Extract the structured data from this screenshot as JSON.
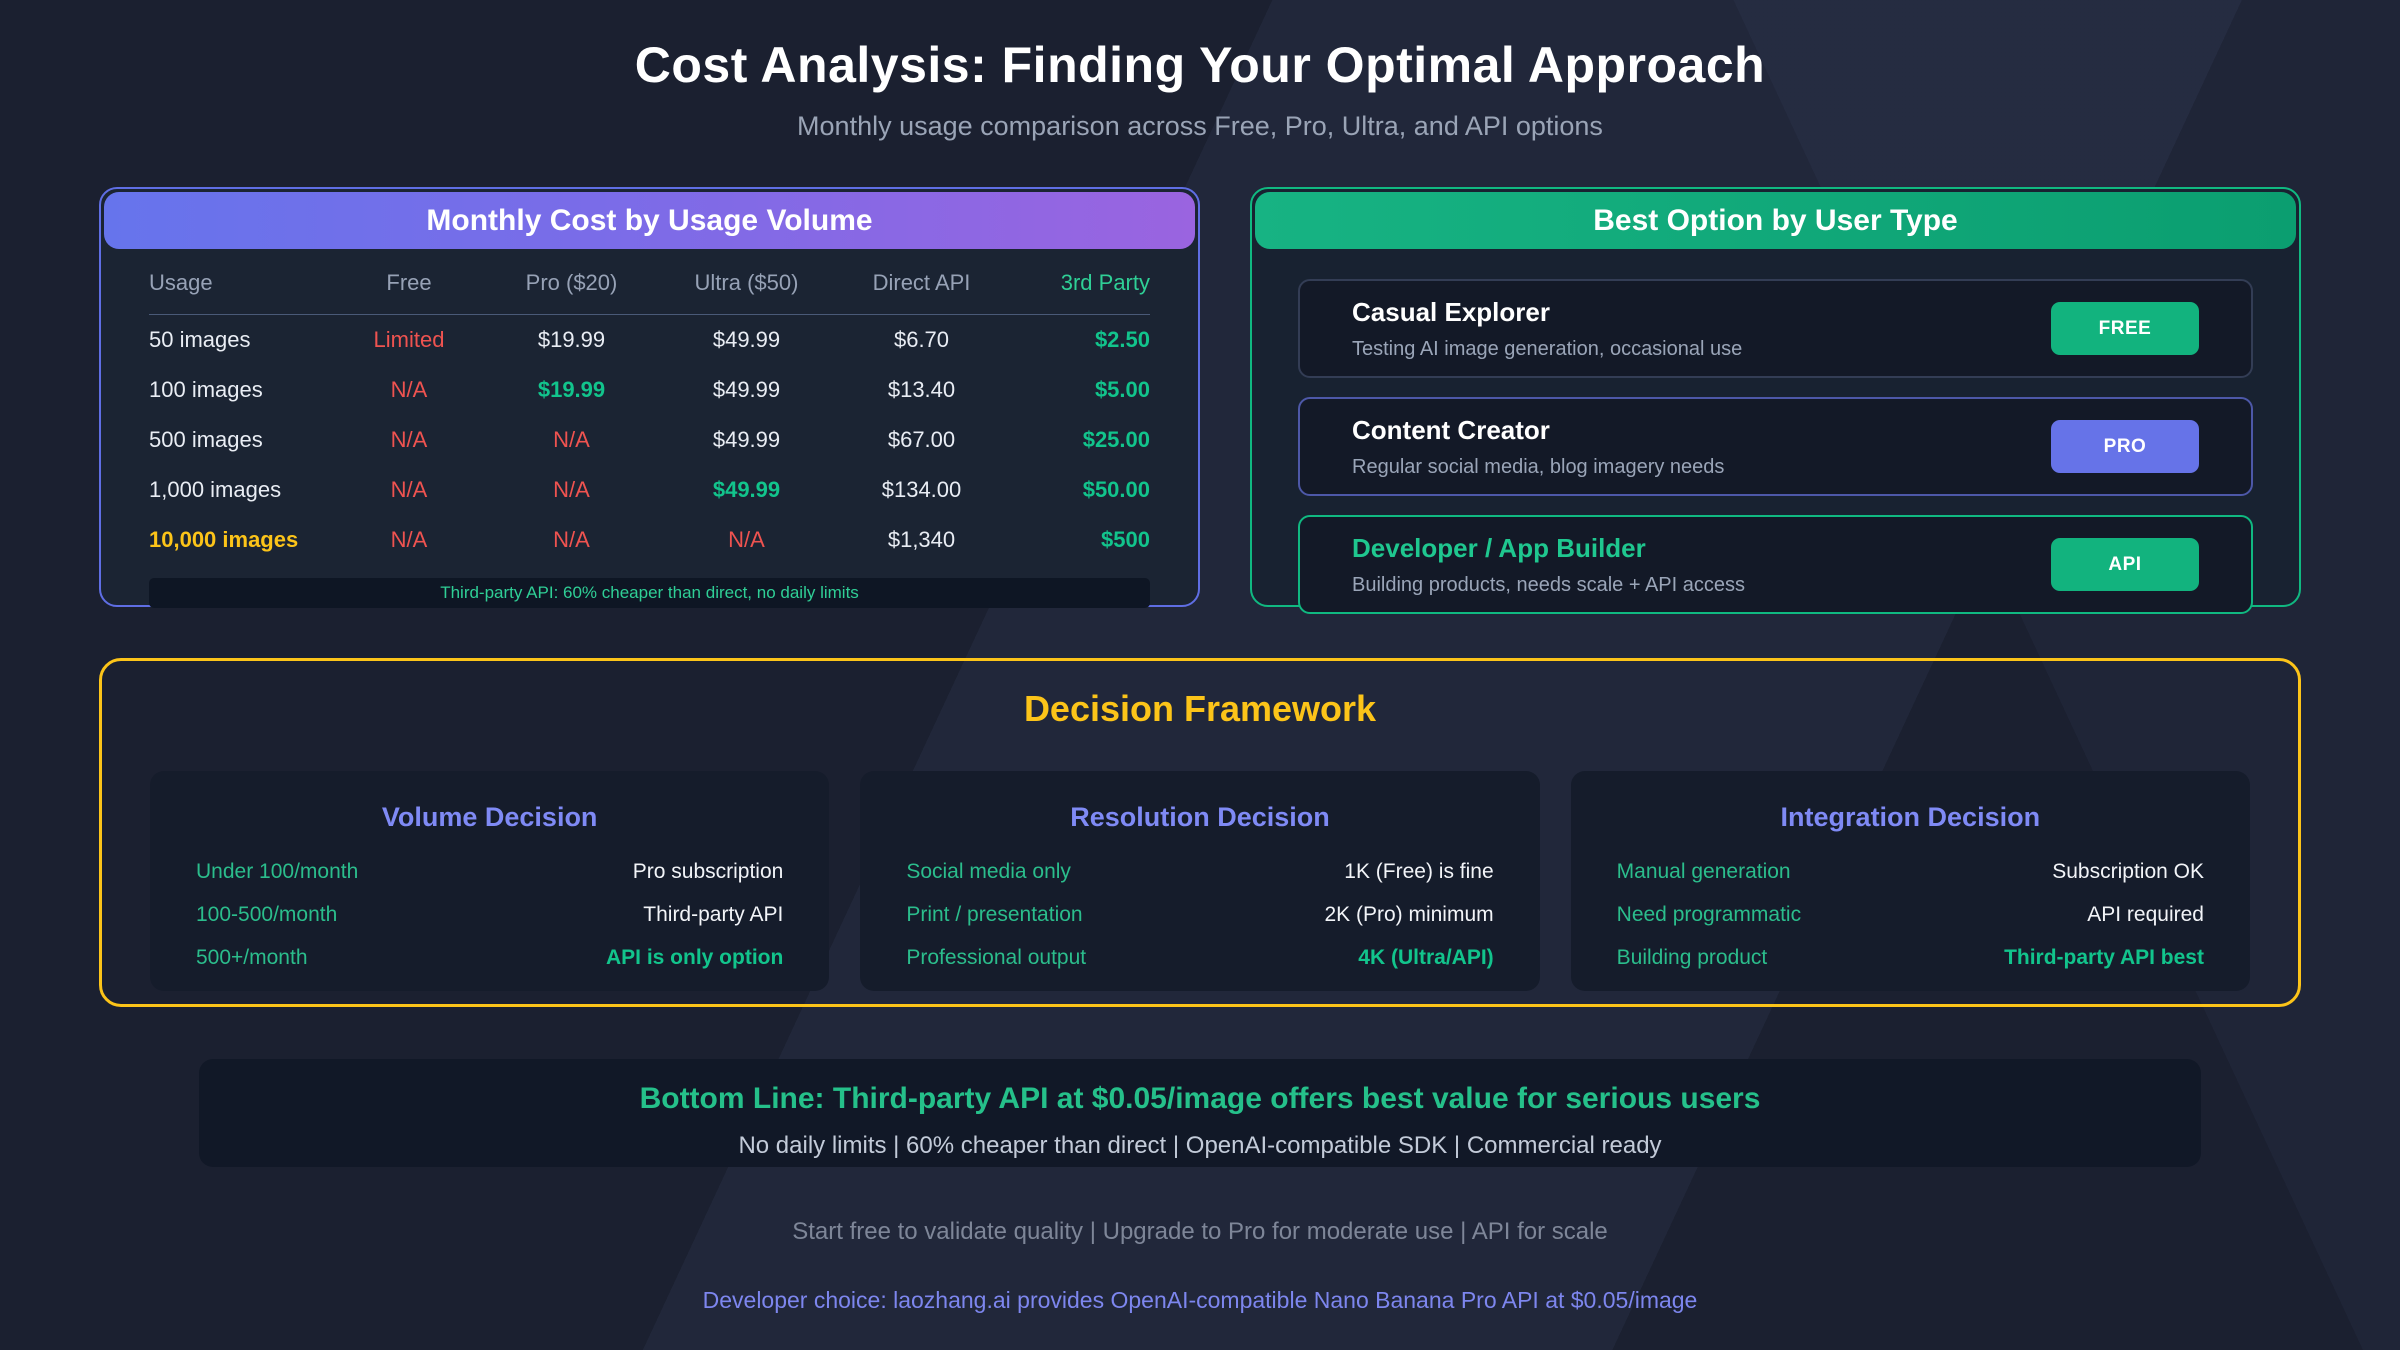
{
  "page": {
    "title": "Cost Analysis: Finding Your Optimal Approach",
    "subtitle": "Monthly usage comparison across Free, Pro, Ultra, and API options"
  },
  "colors": {
    "green_accent": "#10b981",
    "red_accent": "#ef5350",
    "yellow_accent": "#fcc419",
    "indigo_accent": "#818cf8",
    "purple_gradient": [
      "#6674ec",
      "#9a64e0"
    ],
    "green_gradient": [
      "#17b383",
      "#0b9e70"
    ]
  },
  "cost_table": {
    "title": "Monthly Cost by Usage Volume",
    "headers": [
      "Usage",
      "Free",
      "Pro ($20)",
      "Ultra ($50)",
      "Direct API",
      "3rd Party"
    ],
    "rows": [
      {
        "usage": "50 images",
        "free": "Limited",
        "pro": "$19.99",
        "ultra": "$49.99",
        "direct": "$6.70",
        "third": "$2.50"
      },
      {
        "usage": "100 images",
        "free": "N/A",
        "pro": "$19.99",
        "ultra": "$49.99",
        "direct": "$13.40",
        "third": "$5.00"
      },
      {
        "usage": "500 images",
        "free": "N/A",
        "pro": "N/A",
        "ultra": "$49.99",
        "direct": "$67.00",
        "third": "$25.00"
      },
      {
        "usage": "1,000 images",
        "free": "N/A",
        "pro": "N/A",
        "ultra": "$49.99",
        "direct": "$134.00",
        "third": "$50.00"
      },
      {
        "usage": "10,000 images",
        "free": "N/A",
        "pro": "N/A",
        "ultra": "N/A",
        "direct": "$1,340",
        "third": "$500"
      }
    ],
    "note": "Third-party API: 60% cheaper than direct, no daily limits"
  },
  "best_option": {
    "title": "Best Option by User Type",
    "cards": [
      {
        "title": "Casual Explorer",
        "description": "Testing AI image generation, occasional use",
        "badge": "FREE"
      },
      {
        "title": "Content Creator",
        "description": "Regular social media, blog imagery needs",
        "badge": "PRO"
      },
      {
        "title": "Developer / App Builder",
        "description": "Building products, needs scale + API access",
        "badge": "API"
      }
    ]
  },
  "decision_framework": {
    "title": "Decision Framework",
    "columns": [
      {
        "title": "Volume Decision",
        "rows": [
          {
            "label": "Under 100/month",
            "value": "Pro subscription"
          },
          {
            "label": "100-500/month",
            "value": "Third-party API"
          },
          {
            "label": "500+/month",
            "value": "API is only option"
          }
        ]
      },
      {
        "title": "Resolution Decision",
        "rows": [
          {
            "label": "Social media only",
            "value": "1K (Free) is fine"
          },
          {
            "label": "Print / presentation",
            "value": "2K (Pro) minimum"
          },
          {
            "label": "Professional output",
            "value": "4K (Ultra/API)"
          }
        ]
      },
      {
        "title": "Integration Decision",
        "rows": [
          {
            "label": "Manual generation",
            "value": "Subscription OK"
          },
          {
            "label": "Need programmatic",
            "value": "API required"
          },
          {
            "label": "Building product",
            "value": "Third-party API best"
          }
        ]
      }
    ]
  },
  "bottom_line": {
    "title": "Bottom Line: Third-party API at $0.05/image offers best value for serious users",
    "subtitle": "No daily limits | 60% cheaper than direct | OpenAI-compatible SDK | Commercial ready"
  },
  "footer": {
    "line1": "Start free to validate quality | Upgrade to Pro for moderate use | API for scale",
    "line2": "Developer choice: laozhang.ai provides OpenAI-compatible Nano Banana Pro API at $0.05/image"
  }
}
